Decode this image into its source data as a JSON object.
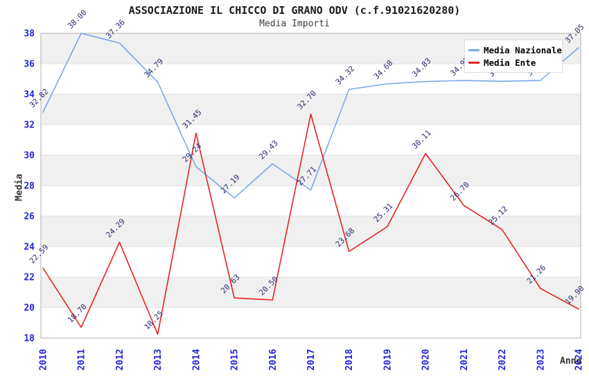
{
  "header": {
    "title": "ASSOCIAZIONE IL CHICCO DI GRANO ODV (c.f.91021620280)",
    "subtitle": "Media Importi"
  },
  "legend": {
    "position": "top-right",
    "items": [
      {
        "label": "Media Nazionale",
        "color": "#79a9e4"
      },
      {
        "label": "Media Ente",
        "color": "#e62020"
      }
    ]
  },
  "axes": {
    "y_title": "Media",
    "x_title": "Anno",
    "y_ticks": [
      18,
      20,
      22,
      24,
      26,
      28,
      30,
      32,
      34,
      36,
      38
    ],
    "x_ticks": [
      "2010",
      "2011",
      "2012",
      "2013",
      "2014",
      "2015",
      "2016",
      "2017",
      "2018",
      "2019",
      "2020",
      "2021",
      "2022",
      "2023",
      "2024"
    ],
    "tick_color": "#2222dd"
  },
  "chart_data": {
    "type": "line",
    "title": "Media Importi",
    "xlabel": "Anno",
    "ylabel": "Media",
    "x": [
      2010,
      2011,
      2012,
      2013,
      2014,
      2015,
      2016,
      2017,
      2018,
      2019,
      2020,
      2021,
      2022,
      2023,
      2024
    ],
    "series": [
      {
        "name": "Media Nazionale",
        "color": "#79a9e4",
        "values": [
          32.82,
          38.0,
          37.36,
          34.79,
          29.24,
          27.19,
          29.43,
          27.71,
          34.32,
          34.68,
          34.83,
          34.9,
          34.85,
          34.9,
          37.05
        ]
      },
      {
        "name": "Media Ente",
        "color": "#e62020",
        "values": [
          22.59,
          18.7,
          24.29,
          18.25,
          31.45,
          20.63,
          20.5,
          32.7,
          23.68,
          25.31,
          30.11,
          26.7,
          25.12,
          21.26,
          19.9
        ]
      }
    ],
    "ylim": [
      18,
      38
    ],
    "ytick_step": 2,
    "grid": "horizontal-bands",
    "band_colors": [
      "#ffffff",
      "#f0f0f0"
    ],
    "gridline_color": "#e2e2e2",
    "plot_border_color": "#b0b0b0",
    "point_label_color": "#2b2b6e",
    "legend_position": "top-right"
  }
}
